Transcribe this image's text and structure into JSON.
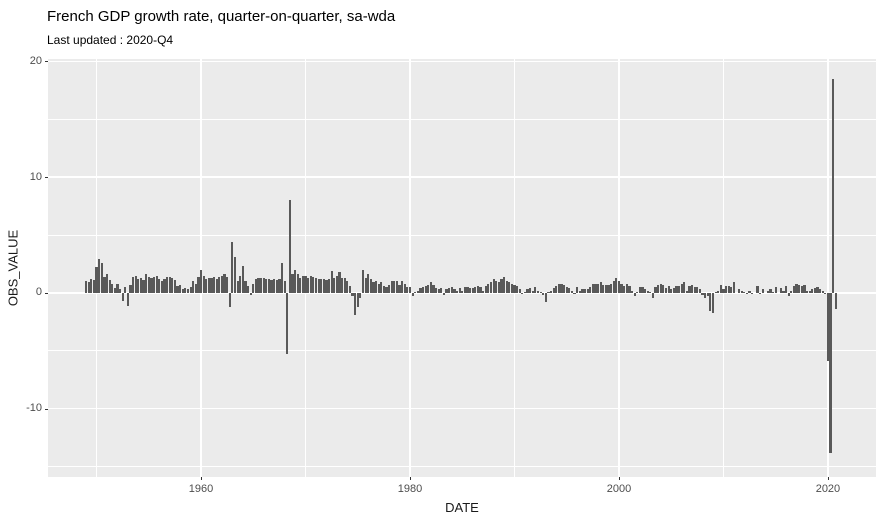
{
  "chart_data": {
    "type": "bar",
    "title": "French GDP growth rate, quarter-on-quarter, sa-wda",
    "subtitle": "Last updated : 2020-Q4",
    "xlabel": "DATE",
    "ylabel": "OBS_VALUE",
    "series_name": "OBS_VALUE",
    "frequency": "quarterly",
    "start_period": "1949-Q1",
    "end_period": "2020-Q4",
    "start_year": 1949,
    "xlim": [
      1945.35,
      2024.6
    ],
    "ylim": [
      -15.9,
      20.2
    ],
    "x_major_ticks": [
      1960,
      1980,
      2000,
      2020
    ],
    "x_minor_ticks": [
      1950,
      1970,
      1990,
      2010
    ],
    "y_major_ticks": [
      20,
      10,
      0,
      -10
    ],
    "y_minor_ticks": [
      15,
      5,
      -5,
      -15
    ],
    "grid": true,
    "legend": "none",
    "colors": {
      "bar": "#595959",
      "panel_bg": "#EBEBEB",
      "grid": "#FFFFFF",
      "tick_label": "#4D4D4D",
      "axis_title": "#1A1A1A",
      "title": "#000000"
    },
    "values": [
      1.0,
      0.9,
      1.2,
      1.1,
      2.2,
      2.9,
      2.6,
      1.4,
      1.6,
      1.1,
      0.8,
      0.4,
      0.8,
      0.3,
      -0.7,
      0.5,
      -1.1,
      0.7,
      1.4,
      1.5,
      1.2,
      1.3,
      1.1,
      1.6,
      1.4,
      1.3,
      1.4,
      1.5,
      1.2,
      1.0,
      1.2,
      1.4,
      1.4,
      1.3,
      1.1,
      0.6,
      0.7,
      0.3,
      0.4,
      0.3,
      0.5,
      1.0,
      0.8,
      1.4,
      2.0,
      1.5,
      1.2,
      1.3,
      1.3,
      1.4,
      1.2,
      1.4,
      1.5,
      1.6,
      1.4,
      -1.2,
      4.4,
      3.1,
      1.0,
      1.5,
      2.3,
      1.0,
      0.6,
      -0.2,
      0.8,
      1.2,
      1.3,
      1.3,
      1.3,
      1.2,
      1.2,
      1.1,
      1.2,
      1.1,
      1.2,
      2.6,
      1.0,
      -5.3,
      8.0,
      1.6,
      2.0,
      1.6,
      1.3,
      1.5,
      1.5,
      1.3,
      1.5,
      1.4,
      1.3,
      1.2,
      1.2,
      1.2,
      1.1,
      1.2,
      1.9,
      1.3,
      1.5,
      1.8,
      1.3,
      1.3,
      1.0,
      0.6,
      -0.3,
      -1.9,
      -1.2,
      -0.4,
      2.0,
      1.3,
      1.6,
      1.2,
      0.9,
      1.0,
      0.8,
      0.9,
      0.6,
      0.5,
      0.7,
      1.0,
      1.0,
      1.0,
      0.7,
      1.0,
      0.8,
      0.5,
      0.5,
      -0.3,
      0.1,
      0.2,
      0.4,
      0.5,
      0.6,
      0.7,
      0.9,
      0.7,
      0.4,
      0.3,
      0.4,
      -0.2,
      0.3,
      0.4,
      0.5,
      0.3,
      0.2,
      0.4,
      0.2,
      0.5,
      0.5,
      0.4,
      0.4,
      0.5,
      0.6,
      0.5,
      0.2,
      0.6,
      0.8,
      0.9,
      1.2,
      1.0,
      0.9,
      1.2,
      1.4,
      1.0,
      0.9,
      0.8,
      0.7,
      0.6,
      0.3,
      -0.1,
      0.1,
      0.3,
      0.4,
      0.2,
      0.5,
      0.2,
      0.1,
      -0.2,
      -0.8,
      0.1,
      0.2,
      0.4,
      0.6,
      0.8,
      0.8,
      0.7,
      0.5,
      0.4,
      0.2,
      -0.1,
      0.5,
      0.2,
      0.3,
      0.3,
      0.3,
      0.5,
      0.8,
      0.8,
      0.8,
      0.9,
      0.7,
      0.7,
      0.7,
      0.8,
      1.0,
      1.3,
      1.0,
      0.8,
      0.6,
      0.8,
      0.6,
      0.2,
      -0.3,
      0.1,
      0.5,
      0.5,
      0.3,
      0.2,
      0.1,
      -0.4,
      0.5,
      0.7,
      0.8,
      0.7,
      0.4,
      0.6,
      0.3,
      0.4,
      0.6,
      0.6,
      0.8,
      0.9,
      0.2,
      0.6,
      0.7,
      0.5,
      0.5,
      0.3,
      -0.2,
      -0.4,
      -0.3,
      -1.6,
      -1.7,
      0.1,
      0.2,
      0.7,
      0.3,
      0.6,
      0.6,
      0.5,
      0.9,
      0.0,
      0.3,
      0.2,
      0.1,
      -0.1,
      0.2,
      -0.1,
      0.0,
      0.6,
      -0.1,
      0.3,
      0.0,
      0.2,
      0.3,
      0.1,
      0.5,
      0.0,
      0.4,
      0.2,
      0.6,
      -0.3,
      0.2,
      0.6,
      0.8,
      0.7,
      0.6,
      0.7,
      0.2,
      0.2,
      0.3,
      0.4,
      0.5,
      0.3,
      0.2,
      -0.1,
      -5.9,
      -13.8,
      18.5,
      -1.4
    ]
  }
}
